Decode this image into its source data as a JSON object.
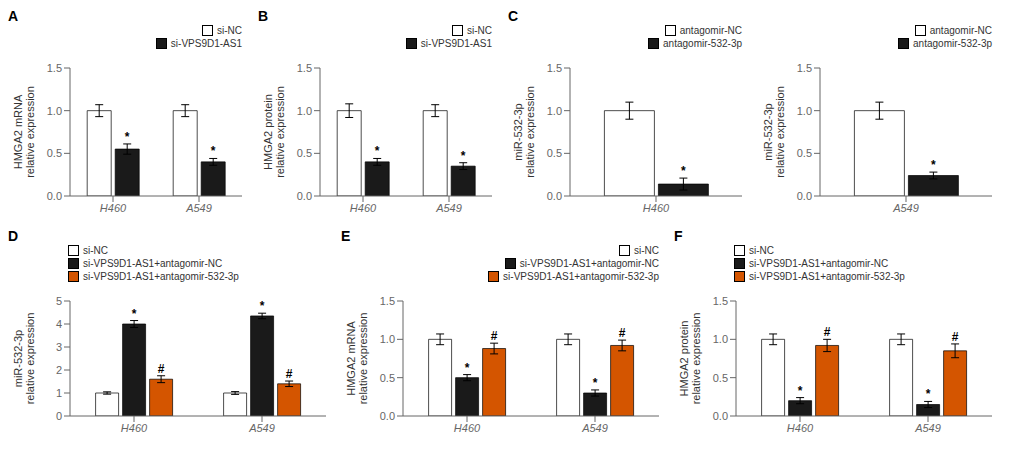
{
  "chart_data": [
    {
      "type": "bar",
      "title": "A",
      "ylabel": "HMGA2 mRNA\nrelative expression",
      "categories": [
        "H460",
        "A549"
      ],
      "legend": "upper right",
      "series": [
        {
          "name": "si-NC",
          "color": "#ffffff",
          "values": [
            1.0,
            1.0
          ],
          "errors": [
            0.07,
            0.07
          ]
        },
        {
          "name": "si-VPS9D1-AS1",
          "color": "#1a1a1a",
          "values": [
            0.55,
            0.4
          ],
          "errors": [
            0.06,
            0.04
          ],
          "annotations": [
            "*",
            "*"
          ]
        }
      ],
      "ylim": [
        0,
        1.5
      ],
      "yticks": [
        {
          "value": 0.0,
          "label": "0.0"
        },
        {
          "value": 0.5,
          "label": "0.5"
        },
        {
          "value": 1.0,
          "label": "1.0"
        },
        {
          "value": 1.5,
          "label": "1.5"
        }
      ]
    },
    {
      "type": "bar",
      "title": "B",
      "ylabel": "HMGA2 protein\nrelative expression",
      "categories": [
        "H460",
        "A549"
      ],
      "legend": "upper right",
      "series": [
        {
          "name": "si-NC",
          "color": "#ffffff",
          "values": [
            1.0,
            1.0
          ],
          "errors": [
            0.08,
            0.07
          ]
        },
        {
          "name": "si-VPS9D1-AS1",
          "color": "#1a1a1a",
          "values": [
            0.4,
            0.35
          ],
          "errors": [
            0.04,
            0.04
          ],
          "annotations": [
            "*",
            "*"
          ]
        }
      ],
      "ylim": [
        0,
        1.5
      ],
      "yticks": [
        {
          "value": 0.0,
          "label": "0.0"
        },
        {
          "value": 0.5,
          "label": "0.5"
        },
        {
          "value": 1.0,
          "label": "1.0"
        },
        {
          "value": 1.5,
          "label": "1.5"
        }
      ]
    },
    {
      "type": "bar",
      "title": "C",
      "ylabel": "miR-532-3p\nrelative expression",
      "categories": [
        "H460"
      ],
      "legend": "upper right",
      "series": [
        {
          "name": "antagomir-NC",
          "color": "#ffffff",
          "values": [
            1.0
          ],
          "errors": [
            0.1
          ]
        },
        {
          "name": "antagomir-532-3p",
          "color": "#1a1a1a",
          "values": [
            0.14
          ],
          "errors": [
            0.07
          ],
          "annotations": [
            "*"
          ]
        }
      ],
      "ylim": [
        0,
        1.5
      ],
      "yticks": [
        {
          "value": 0.0,
          "label": "0.0"
        },
        {
          "value": 0.5,
          "label": "0.5"
        },
        {
          "value": 1.0,
          "label": "1.0"
        },
        {
          "value": 1.5,
          "label": "1.5"
        }
      ]
    },
    {
      "type": "bar",
      "ylabel": "miR-532-3p\nrelative expression",
      "categories": [
        "A549"
      ],
      "legend": "upper right",
      "series": [
        {
          "name": "antagomir-NC",
          "color": "#ffffff",
          "values": [
            1.0
          ],
          "errors": [
            0.1
          ]
        },
        {
          "name": "antagomir-532-3p",
          "color": "#1a1a1a",
          "values": [
            0.24
          ],
          "errors": [
            0.04
          ],
          "annotations": [
            "*"
          ]
        }
      ],
      "ylim": [
        0,
        1.5
      ],
      "yticks": [
        {
          "value": 0.0,
          "label": "0.0"
        },
        {
          "value": 0.5,
          "label": "0.5"
        },
        {
          "value": 1.0,
          "label": "1.0"
        },
        {
          "value": 1.5,
          "label": "1.5"
        }
      ]
    },
    {
      "type": "bar",
      "title": "D",
      "ylabel": "miR-532-3p\nrelative expression",
      "categories": [
        "H460",
        "A549"
      ],
      "legend": "upper left",
      "series": [
        {
          "name": "si-NC",
          "color": "#ffffff",
          "values": [
            1.0,
            1.0
          ],
          "errors": [
            0.05,
            0.06
          ]
        },
        {
          "name": "si-VPS9D1-AS1+antagomir-NC",
          "color": "#1a1a1a",
          "values": [
            4.0,
            4.35
          ],
          "errors": [
            0.15,
            0.12
          ],
          "annotations": [
            "*",
            "*"
          ]
        },
        {
          "name": "si-VPS9D1-AS1+antagomir-532-3p",
          "color": "#d45500",
          "values": [
            1.6,
            1.4
          ],
          "errors": [
            0.15,
            0.12
          ],
          "annotations": [
            "#",
            "#"
          ]
        }
      ],
      "ylim": [
        0,
        5
      ],
      "yticks": [
        0,
        1,
        2,
        3,
        4,
        5
      ]
    },
    {
      "type": "bar",
      "title": "E",
      "ylabel": "HMGA2 mRNA\nrelative expression",
      "categories": [
        "H460",
        "A549"
      ],
      "legend": "upper right",
      "series": [
        {
          "name": "si-NC",
          "color": "#ffffff",
          "values": [
            1.0,
            1.0
          ],
          "errors": [
            0.07,
            0.07
          ]
        },
        {
          "name": "si-VPS9D1-AS1+antagomir-NC",
          "color": "#1a1a1a",
          "values": [
            0.5,
            0.3
          ],
          "errors": [
            0.04,
            0.04
          ],
          "annotations": [
            "*",
            "*"
          ]
        },
        {
          "name": "si-VPS9D1-AS1+antagomir-532-3p",
          "color": "#d45500",
          "values": [
            0.88,
            0.92
          ],
          "errors": [
            0.07,
            0.07
          ],
          "annotations": [
            "#",
            "#"
          ]
        }
      ],
      "ylim": [
        0,
        1.5
      ],
      "yticks": [
        {
          "value": 0.0,
          "label": "0.0"
        },
        {
          "value": 0.5,
          "label": "0.5"
        },
        {
          "value": 1.0,
          "label": "1.0"
        },
        {
          "value": 1.5,
          "label": "1.5"
        }
      ]
    },
    {
      "type": "bar",
      "title": "F",
      "ylabel": "HMGA2 protein\nrelative expression",
      "categories": [
        "H460",
        "A549"
      ],
      "legend": "upper left",
      "series": [
        {
          "name": "si-NC",
          "color": "#ffffff",
          "values": [
            1.0,
            1.0
          ],
          "errors": [
            0.07,
            0.07
          ]
        },
        {
          "name": "si-VPS9D1-AS1+antagomir-NC",
          "color": "#1a1a1a",
          "values": [
            0.2,
            0.15
          ],
          "errors": [
            0.04,
            0.04
          ],
          "annotations": [
            "*",
            "*"
          ]
        },
        {
          "name": "si-VPS9D1-AS1+antagomir-532-3p",
          "color": "#d45500",
          "values": [
            0.92,
            0.85
          ],
          "errors": [
            0.08,
            0.09
          ],
          "annotations": [
            "#",
            "#"
          ]
        }
      ],
      "ylim": [
        0,
        1.5
      ],
      "yticks": [
        {
          "value": 0.0,
          "label": "0.0"
        },
        {
          "value": 0.5,
          "label": "0.5"
        },
        {
          "value": 1.0,
          "label": "1.0"
        },
        {
          "value": 1.5,
          "label": "1.5"
        }
      ]
    }
  ]
}
